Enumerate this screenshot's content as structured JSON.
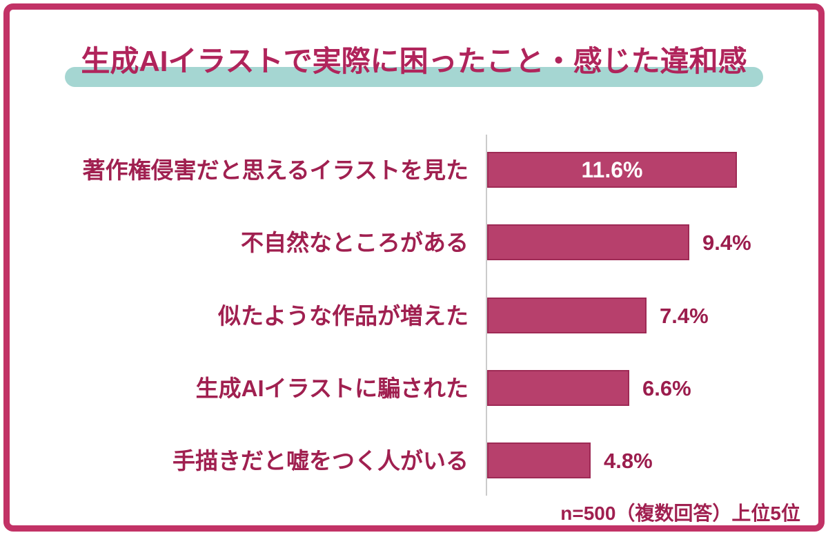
{
  "page": {
    "frame_border_color": "#c23266",
    "background_color": "#ffffff"
  },
  "title": {
    "text": "生成AIイラストで実際に困ったこと・感じた違和感",
    "text_color": "#b0245b",
    "highlight_color": "#a5d6d2"
  },
  "chart_data": {
    "type": "bar",
    "orientation": "horizontal",
    "title": "生成AIイラストで実際に困ったこと・感じた違和感",
    "categories": [
      "著作権侵害だと思えるイラストを見た",
      "不自然なところがある",
      "似たような作品が増えた",
      "生成AIイラストに騙された",
      "手描きだと嘘をつく人がいる"
    ],
    "values": [
      11.6,
      9.4,
      7.4,
      6.6,
      4.8
    ],
    "value_labels": [
      "11.6%",
      "9.4%",
      "7.4%",
      "6.6%",
      "4.8%"
    ],
    "value_label_placement": [
      "inside",
      "outside",
      "outside",
      "outside",
      "outside"
    ],
    "xlabel": "",
    "ylabel": "",
    "xlim": [
      0,
      15.5
    ],
    "grid": false,
    "legend": false,
    "bar_color": "#b7406c",
    "bar_border_color": "#9e2a55",
    "axis_line_color": "#cbcbcb",
    "value_inside_color": "#ffffff",
    "value_outside_color": "#9b1d4d",
    "footnote": "n=500（複数回答）上位5位"
  },
  "footnote": {
    "text": "n=500（複数回答）上位5位"
  }
}
